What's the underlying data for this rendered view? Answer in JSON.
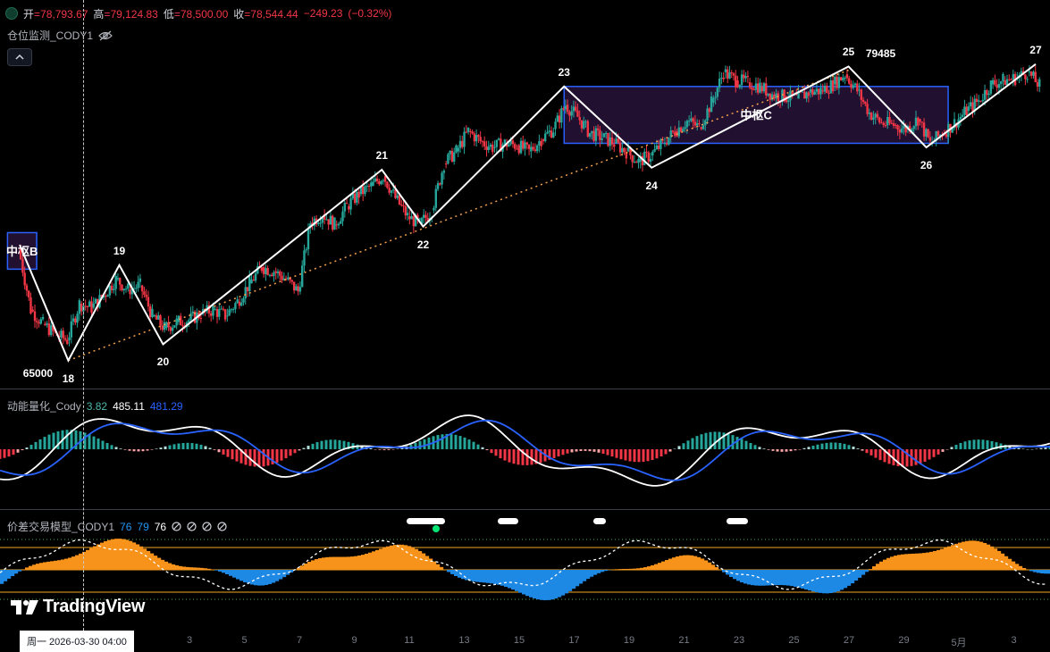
{
  "chart_data": [
    {
      "type": "candlestick",
      "title": "仓位监测_CODY1",
      "ohlc": {
        "open_label": "开",
        "open": "78,793.67",
        "high_label": "高",
        "high": "79,124.83",
        "low_label": "低",
        "low": "78,500.00",
        "close_label": "收",
        "close": "78,544.44",
        "change": "−249.23",
        "change_pct": "(−0.32%)"
      },
      "ylim": [
        64500,
        81000
      ],
      "zigzag_points": [
        {
          "x": 0,
          "y": 70700
        },
        {
          "x": 2,
          "y": 65000,
          "label": "18"
        },
        {
          "x": 4.1,
          "y": 69700,
          "label": "19"
        },
        {
          "x": 5.9,
          "y": 65800,
          "label": "20"
        },
        {
          "x": 14.9,
          "y": 74400,
          "label": "21"
        },
        {
          "x": 16.6,
          "y": 71600,
          "label": "22"
        },
        {
          "x": 22.4,
          "y": 78500,
          "label": "23"
        },
        {
          "x": 26,
          "y": 74500,
          "label": "24"
        },
        {
          "x": 34.1,
          "y": 79485,
          "label": "25"
        },
        {
          "x": 37.3,
          "y": 75500,
          "label": "26"
        },
        {
          "x": 41.8,
          "y": 79600,
          "label": "27"
        }
      ],
      "price_labels": [
        "65000",
        "79485"
      ],
      "zones": [
        {
          "label": "中枢B",
          "x0": -0.5,
          "x1": 0.7,
          "y0": 69500,
          "y1": 71300
        },
        {
          "label": "中枢C",
          "x0": 22.4,
          "x1": 38.2,
          "y0": 75700,
          "y1": 78500
        }
      ],
      "trend_line": {
        "x0": 2,
        "y0": 65000,
        "x1": 34.1,
        "y1": 79300
      },
      "candles_daily_close": [
        {
          "x": 0,
          "c": 70500
        },
        {
          "x": 0.5,
          "c": 67500
        },
        {
          "x": 1,
          "c": 66800
        },
        {
          "x": 1.5,
          "c": 66300
        },
        {
          "x": 2,
          "c": 66000
        },
        {
          "x": 2.5,
          "c": 67800
        },
        {
          "x": 3,
          "c": 67600
        },
        {
          "x": 3.5,
          "c": 68200
        },
        {
          "x": 4,
          "c": 69000
        },
        {
          "x": 4.5,
          "c": 68500
        },
        {
          "x": 5,
          "c": 68700
        },
        {
          "x": 5.5,
          "c": 67200
        },
        {
          "x": 6,
          "c": 66600
        },
        {
          "x": 6.5,
          "c": 66900
        },
        {
          "x": 7,
          "c": 67000
        },
        {
          "x": 7.5,
          "c": 67300
        },
        {
          "x": 8,
          "c": 67500
        },
        {
          "x": 8.5,
          "c": 67200
        },
        {
          "x": 9,
          "c": 67900
        },
        {
          "x": 9.5,
          "c": 68800
        },
        {
          "x": 10,
          "c": 69600
        },
        {
          "x": 10.5,
          "c": 69400
        },
        {
          "x": 11,
          "c": 69000
        },
        {
          "x": 11.5,
          "c": 68400
        },
        {
          "x": 12,
          "c": 71800
        },
        {
          "x": 12.5,
          "c": 72200
        },
        {
          "x": 13,
          "c": 71700
        },
        {
          "x": 13.5,
          "c": 72600
        },
        {
          "x": 14,
          "c": 73200
        },
        {
          "x": 14.5,
          "c": 73600
        },
        {
          "x": 15,
          "c": 74100
        },
        {
          "x": 15.5,
          "c": 73000
        },
        {
          "x": 16,
          "c": 72100
        },
        {
          "x": 16.5,
          "c": 71700
        },
        {
          "x": 17,
          "c": 72400
        },
        {
          "x": 17.5,
          "c": 74700
        },
        {
          "x": 18,
          "c": 75300
        },
        {
          "x": 18.5,
          "c": 76300
        },
        {
          "x": 19,
          "c": 75800
        },
        {
          "x": 19.5,
          "c": 75500
        },
        {
          "x": 20,
          "c": 75700
        },
        {
          "x": 20.5,
          "c": 75600
        },
        {
          "x": 21,
          "c": 75300
        },
        {
          "x": 21.5,
          "c": 75900
        },
        {
          "x": 22,
          "c": 76400
        },
        {
          "x": 22.5,
          "c": 77600
        },
        {
          "x": 23,
          "c": 77000
        },
        {
          "x": 23.5,
          "c": 76200
        },
        {
          "x": 24,
          "c": 76000
        },
        {
          "x": 24.5,
          "c": 75700
        },
        {
          "x": 25,
          "c": 75300
        },
        {
          "x": 25.5,
          "c": 74800
        },
        {
          "x": 26,
          "c": 75100
        },
        {
          "x": 26.5,
          "c": 75700
        },
        {
          "x": 27,
          "c": 76300
        },
        {
          "x": 27.5,
          "c": 76800
        },
        {
          "x": 28,
          "c": 76500
        },
        {
          "x": 28.5,
          "c": 77700
        },
        {
          "x": 29,
          "c": 79200
        },
        {
          "x": 29.5,
          "c": 78800
        },
        {
          "x": 30,
          "c": 78700
        },
        {
          "x": 30.5,
          "c": 78500
        },
        {
          "x": 31,
          "c": 78100
        },
        {
          "x": 31.5,
          "c": 78000
        },
        {
          "x": 32,
          "c": 77900
        },
        {
          "x": 32.5,
          "c": 78200
        },
        {
          "x": 33,
          "c": 78300
        },
        {
          "x": 33.5,
          "c": 78600
        },
        {
          "x": 34,
          "c": 79100
        },
        {
          "x": 34.5,
          "c": 78300
        },
        {
          "x": 35,
          "c": 77200
        },
        {
          "x": 35.5,
          "c": 76700
        },
        {
          "x": 36,
          "c": 76600
        },
        {
          "x": 36.5,
          "c": 76400
        },
        {
          "x": 37,
          "c": 76900
        },
        {
          "x": 37.5,
          "c": 75700
        },
        {
          "x": 38,
          "c": 76200
        },
        {
          "x": 38.5,
          "c": 76700
        },
        {
          "x": 39,
          "c": 77300
        },
        {
          "x": 39.5,
          "c": 77800
        },
        {
          "x": 40,
          "c": 78600
        },
        {
          "x": 40.5,
          "c": 78800
        },
        {
          "x": 41,
          "c": 78900
        },
        {
          "x": 41.5,
          "c": 79200
        },
        {
          "x": 42,
          "c": 78544
        }
      ],
      "colors": {
        "up": "#26a69a",
        "down": "#f23645",
        "zigzag": "#ffffff",
        "zone_border": "#2962ff",
        "zone_fill": "#221030",
        "trend": "#f5a04b"
      }
    },
    {
      "type": "macd",
      "title": "动能量化_Cody",
      "values": [
        "3.82",
        "485.11",
        "481.29"
      ],
      "value_colors": [
        "#4db6ac",
        "#ffffff",
        "#2962ff"
      ]
    },
    {
      "type": "area",
      "title": "价差交易模型_CODY1",
      "values": [
        "76",
        "79",
        "76"
      ],
      "value_colors": [
        "#2196f3",
        "#2196f3",
        "#ffffff"
      ],
      "extra_icons": [
        "circle-slash-icon",
        "circle-slash-icon",
        "circle-slash-icon",
        "circle-slash-icon"
      ],
      "levels": [
        80,
        50,
        20
      ]
    }
  ],
  "x_axis": {
    "ticks": [
      "3",
      "5",
      "7",
      "9",
      "11",
      "13",
      "15",
      "17",
      "19",
      "21",
      "23",
      "25",
      "27",
      "29",
      "5月",
      "3"
    ],
    "crosshair_label": "周一 2026-03-30   04:00"
  },
  "watermark": "TradingView",
  "collapse_icon": "chevron-up-icon"
}
